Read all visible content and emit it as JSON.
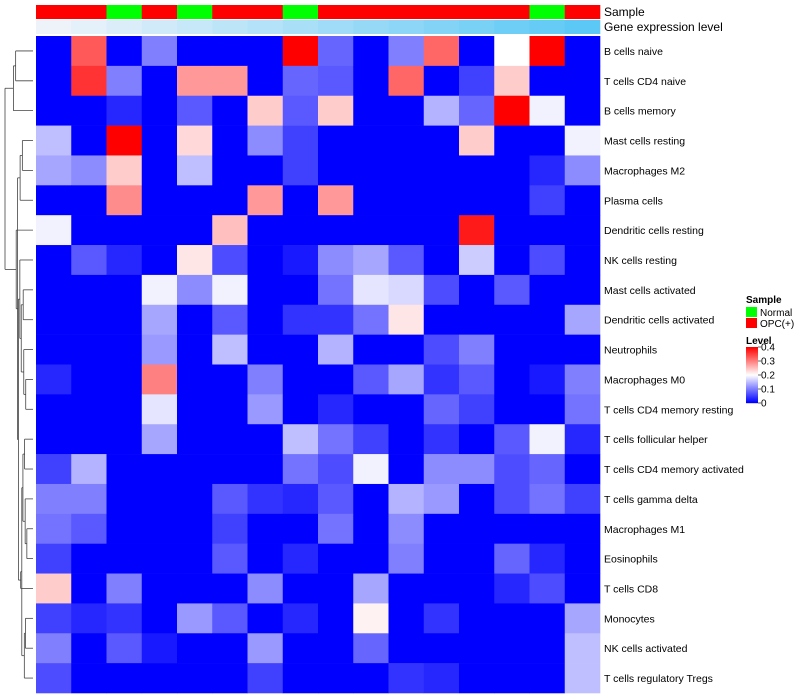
{
  "chart_data": {
    "type": "heatmap",
    "annotation_tracks": [
      "Sample",
      "Gene expression level"
    ],
    "sample_groups": [
      "OPC(+)",
      "OPC(+)",
      "Normal",
      "OPC(+)",
      "Normal",
      "OPC(+)",
      "OPC(+)",
      "Normal",
      "OPC(+)",
      "OPC(+)",
      "OPC(+)",
      "OPC(+)",
      "OPC(+)",
      "OPC(+)",
      "Normal",
      "OPC(+)"
    ],
    "expression_levels": [
      0.05,
      0.1,
      0.15,
      0.2,
      0.25,
      0.3,
      0.35,
      0.4,
      0.45,
      0.5,
      0.55,
      0.6,
      0.65,
      0.7,
      0.75,
      0.8
    ],
    "rows": [
      "B cells naive",
      "T cells CD4 naive",
      "B cells memory",
      "Mast cells resting",
      "Macrophages M2",
      "Plasma cells",
      "Dendritic cells resting",
      "NK cells resting",
      "Mast cells activated",
      "Dendritic cells activated",
      "Neutrophils",
      "Macrophages M0",
      "T cells CD4 memory resting",
      "T cells follicular helper",
      "T cells CD4 memory activated",
      "T cells gamma delta",
      "Macrophages M1",
      "Eosinophils",
      "T cells CD8",
      "Monocytes",
      "NK cells activated",
      "T cells regulatory  Tregs"
    ],
    "values": [
      [
        0.0,
        0.33,
        0.0,
        0.1,
        0.0,
        0.0,
        0.0,
        0.4,
        0.08,
        0.0,
        0.1,
        0.32,
        0.0,
        0.2,
        0.4,
        0.0
      ],
      [
        0.0,
        0.36,
        0.1,
        0.0,
        0.28,
        0.28,
        0.0,
        0.08,
        0.07,
        0.0,
        0.32,
        0.0,
        0.05,
        0.24,
        0.0,
        0.0
      ],
      [
        0.0,
        0.0,
        0.03,
        0.0,
        0.07,
        0.0,
        0.24,
        0.07,
        0.24,
        0.0,
        0.0,
        0.14,
        0.08,
        0.4,
        0.19,
        0.0
      ],
      [
        0.15,
        0.0,
        0.4,
        0.0,
        0.23,
        0.0,
        0.11,
        0.05,
        0.0,
        0.0,
        0.0,
        0.0,
        0.24,
        0.0,
        0.0,
        0.19
      ],
      [
        0.13,
        0.11,
        0.24,
        0.0,
        0.15,
        0.0,
        0.0,
        0.05,
        0.0,
        0.0,
        0.0,
        0.0,
        0.0,
        0.0,
        0.03,
        0.11
      ],
      [
        0.0,
        0.0,
        0.29,
        0.0,
        0.0,
        0.0,
        0.28,
        0.0,
        0.28,
        0.0,
        0.0,
        0.0,
        0.0,
        0.0,
        0.05,
        0.0
      ],
      [
        0.19,
        0.0,
        0.0,
        0.0,
        0.0,
        0.25,
        0.0,
        0.0,
        0.0,
        0.0,
        0.0,
        0.0,
        0.38,
        0.0,
        0.0,
        0.0
      ],
      [
        0.0,
        0.07,
        0.03,
        0.0,
        0.22,
        0.06,
        0.0,
        0.02,
        0.11,
        0.13,
        0.07,
        0.0,
        0.16,
        0.0,
        0.06,
        0.0
      ],
      [
        0.0,
        0.0,
        0.0,
        0.19,
        0.11,
        0.19,
        0.0,
        0.0,
        0.09,
        0.18,
        0.17,
        0.06,
        0.0,
        0.07,
        0.0,
        0.0
      ],
      [
        0.0,
        0.0,
        0.0,
        0.13,
        0.0,
        0.07,
        0.0,
        0.04,
        0.04,
        0.09,
        0.22,
        0.0,
        0.0,
        0.0,
        0.0,
        0.13
      ],
      [
        0.0,
        0.0,
        0.0,
        0.12,
        0.0,
        0.15,
        0.0,
        0.0,
        0.14,
        0.0,
        0.0,
        0.06,
        0.1,
        0.0,
        0.0,
        0.0
      ],
      [
        0.03,
        0.0,
        0.0,
        0.3,
        0.0,
        0.0,
        0.1,
        0.0,
        0.0,
        0.07,
        0.13,
        0.04,
        0.07,
        0.0,
        0.02,
        0.1
      ],
      [
        0.0,
        0.0,
        0.0,
        0.18,
        0.0,
        0.0,
        0.12,
        0.0,
        0.03,
        0.0,
        0.0,
        0.08,
        0.05,
        0.0,
        0.0,
        0.09
      ],
      [
        0.0,
        0.0,
        0.0,
        0.13,
        0.0,
        0.0,
        0.0,
        0.15,
        0.09,
        0.05,
        0.0,
        0.04,
        0.0,
        0.07,
        0.19,
        0.03
      ],
      [
        0.05,
        0.14,
        0.0,
        0.0,
        0.0,
        0.0,
        0.0,
        0.09,
        0.06,
        0.19,
        0.0,
        0.11,
        0.11,
        0.06,
        0.08,
        0.0
      ],
      [
        0.1,
        0.1,
        0.0,
        0.0,
        0.0,
        0.07,
        0.04,
        0.03,
        0.07,
        0.0,
        0.14,
        0.12,
        0.0,
        0.06,
        0.09,
        0.05
      ],
      [
        0.09,
        0.07,
        0.0,
        0.0,
        0.0,
        0.05,
        0.0,
        0.0,
        0.09,
        0.0,
        0.11,
        0.0,
        0.0,
        0.0,
        0.0,
        0.0
      ],
      [
        0.05,
        0.0,
        0.0,
        0.0,
        0.0,
        0.07,
        0.0,
        0.03,
        0.0,
        0.0,
        0.1,
        0.0,
        0.0,
        0.08,
        0.03,
        0.0
      ],
      [
        0.24,
        0.0,
        0.1,
        0.0,
        0.0,
        0.0,
        0.11,
        0.0,
        0.0,
        0.13,
        0.0,
        0.0,
        0.0,
        0.03,
        0.06,
        0.0
      ],
      [
        0.05,
        0.03,
        0.04,
        0.0,
        0.12,
        0.07,
        0.0,
        0.03,
        0.0,
        0.21,
        0.0,
        0.04,
        0.0,
        0.0,
        0.0,
        0.13
      ],
      [
        0.1,
        0.0,
        0.07,
        0.02,
        0.0,
        0.0,
        0.12,
        0.0,
        0.0,
        0.08,
        0.0,
        0.0,
        0.0,
        0.0,
        0.0,
        0.15
      ],
      [
        0.06,
        0.0,
        0.0,
        0.0,
        0.0,
        0.0,
        0.05,
        0.0,
        0.0,
        0.0,
        0.04,
        0.03,
        0.0,
        0.0,
        0.0,
        0.15
      ]
    ],
    "legend": {
      "sample_title": "Sample",
      "sample_entries": [
        {
          "label": "Normal",
          "color": "#00ff00"
        },
        {
          "label": "OPC(+)",
          "color": "#ff0000"
        }
      ],
      "level_title": "Level",
      "level_ticks": [
        "0",
        "0.1",
        "0.2",
        "0.3",
        "0.4"
      ],
      "level_range": [
        0,
        0.4
      ]
    },
    "colors": {
      "low": "#0000ff",
      "mid": "#ffffff",
      "high": "#ff0000",
      "expr_low": "#eef3fa",
      "expr_high": "#5cc8f5",
      "tree": "#444444"
    },
    "dendrogram_merges": [
      [
        [
          19,
          20
        ],
        0.27
      ],
      [
        [
          21,
          "m0"
        ],
        0.31
      ],
      [
        [
          16,
          17
        ],
        0.22
      ],
      [
        [
          15,
          "m2"
        ],
        0.28
      ],
      [
        [
          13,
          14
        ],
        0.3
      ],
      [
        [
          "m4",
          "m3"
        ],
        0.36
      ],
      [
        [
          "m5",
          "m1"
        ],
        0.4
      ],
      [
        [
          18,
          "m6"
        ],
        0.44
      ],
      [
        [
          11,
          12
        ],
        0.26
      ],
      [
        [
          10,
          "m8"
        ],
        0.33
      ],
      [
        [
          8,
          9
        ],
        0.35
      ],
      [
        [
          "m10",
          "m9"
        ],
        0.42
      ],
      [
        [
          7,
          "m11"
        ],
        0.47
      ],
      [
        [
          "m12",
          "m7"
        ],
        0.52
      ],
      [
        [
          3,
          4
        ],
        0.38
      ],
      [
        [
          "m14",
          5
        ],
        0.46
      ],
      [
        [
          "m15",
          "m13"
        ],
        0.55
      ],
      [
        [
          "m16",
          6
        ],
        0.6
      ],
      [
        [
          0,
          1
        ],
        0.62
      ],
      [
        [
          "m18",
          2
        ],
        0.7
      ],
      [
        [
          "m19",
          "m17"
        ],
        1.0
      ]
    ]
  }
}
